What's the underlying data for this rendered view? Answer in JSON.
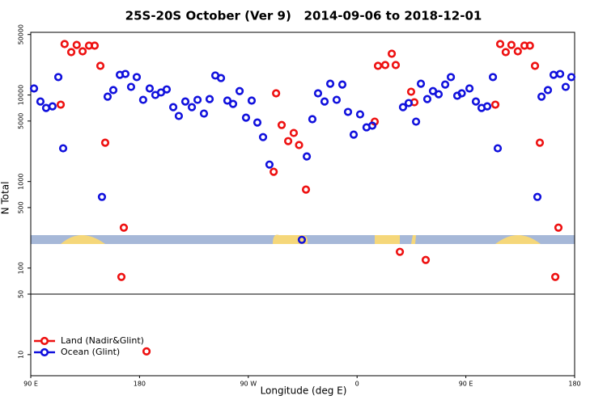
{
  "chart_data": {
    "type": "scatter",
    "title": "25S-20S October (Ver 9)   2014-09-06 to 2018-12-01",
    "xlabel": "Longitude (deg E)",
    "ylabel": "N Total",
    "log_y": true,
    "xlim": [
      90,
      540
    ],
    "ylim": [
      5.7,
      53000
    ],
    "xticks": [
      {
        "value": 90,
        "label": "90 E"
      },
      180,
      {
        "value": 270,
        "label": "90 W"
      },
      {
        "value": 360,
        "label": "0"
      },
      {
        "value": 450,
        "label": "90 E"
      },
      {
        "value": 540,
        "label": "180"
      }
    ],
    "yticks": [
      10,
      50,
      100,
      500,
      1000,
      5000,
      10000,
      50000
    ],
    "hline": 50,
    "legend": "lower left",
    "series": [
      {
        "name": "Land (Nadir&Glint)",
        "color": "#ee1111",
        "x": [
          114.8,
          118,
          123.5,
          128,
          132.9,
          138.2,
          142.9,
          147.6,
          151.6,
          165,
          167,
          185.8,
          291,
          293,
          297.6,
          303,
          307.6,
          312,
          317.7,
          374.6,
          377.3,
          383.3,
          388.7,
          392,
          395.4,
          404.7,
          407.4,
          416.8,
          474.4,
          478.4,
          483,
          487.7,
          493,
          498.5,
          503,
          507.2,
          511.2,
          524,
          526.6
        ],
        "values": [
          7730,
          38800,
          31300,
          37900,
          32000,
          37200,
          37200,
          21700,
          2810,
          78.9,
          293,
          10.9,
          1295,
          10450,
          4500,
          2930,
          3640,
          2640,
          807,
          4920,
          21700,
          22200,
          30000,
          22200,
          154,
          10900,
          8240,
          124,
          7730,
          38800,
          31300,
          37900,
          32000,
          37200,
          37200,
          21700,
          2810,
          78.9,
          293
        ]
      },
      {
        "name": "Ocean (Glint)",
        "color": "#1111dd",
        "x": [
          92.7,
          98,
          102.7,
          108,
          112.8,
          116.8,
          148.9,
          153.6,
          158.3,
          163.7,
          168.3,
          173,
          177.7,
          183,
          188.4,
          193.1,
          197.8,
          202.5,
          207.9,
          212.5,
          217.9,
          223.3,
          228,
          233.3,
          238,
          242.7,
          247.4,
          252.7,
          257.4,
          262.8,
          268.1,
          272.8,
          277.5,
          282.2,
          287.5,
          314.3,
          318.4,
          323,
          327.7,
          333.1,
          337.8,
          343.1,
          347.8,
          352.5,
          357.2,
          362.5,
          367.8,
          372.6,
          398,
          402.7,
          408.8,
          412.8,
          418.1,
          422.8,
          427.5,
          432.9,
          437.6,
          442.9,
          446.6,
          453,
          458.3,
          463,
          467.7,
          472.4,
          476.4,
          509.2,
          512.6,
          517.9,
          522.6,
          528,
          532.6,
          537.3
        ],
        "values": [
          11900,
          8410,
          7080,
          7390,
          16100,
          2420,
          664,
          9570,
          11400,
          17100,
          17500,
          12400,
          16100,
          8790,
          11900,
          10000,
          10700,
          11600,
          7240,
          5720,
          8410,
          7240,
          8790,
          6100,
          8970,
          16800,
          15700,
          8610,
          7890,
          11100,
          5470,
          8610,
          4810,
          3260,
          1570,
          212,
          1950,
          5250,
          10450,
          8410,
          13500,
          8790,
          13200,
          6370,
          3480,
          5970,
          4230,
          4420,
          7240,
          8070,
          4920,
          13500,
          8970,
          11100,
          10200,
          13200,
          16100,
          9800,
          10450,
          11900,
          8410,
          7080,
          7390,
          16100,
          2420,
          664,
          9570,
          11400,
          17100,
          17500,
          12400,
          16100
        ]
      }
    ]
  }
}
